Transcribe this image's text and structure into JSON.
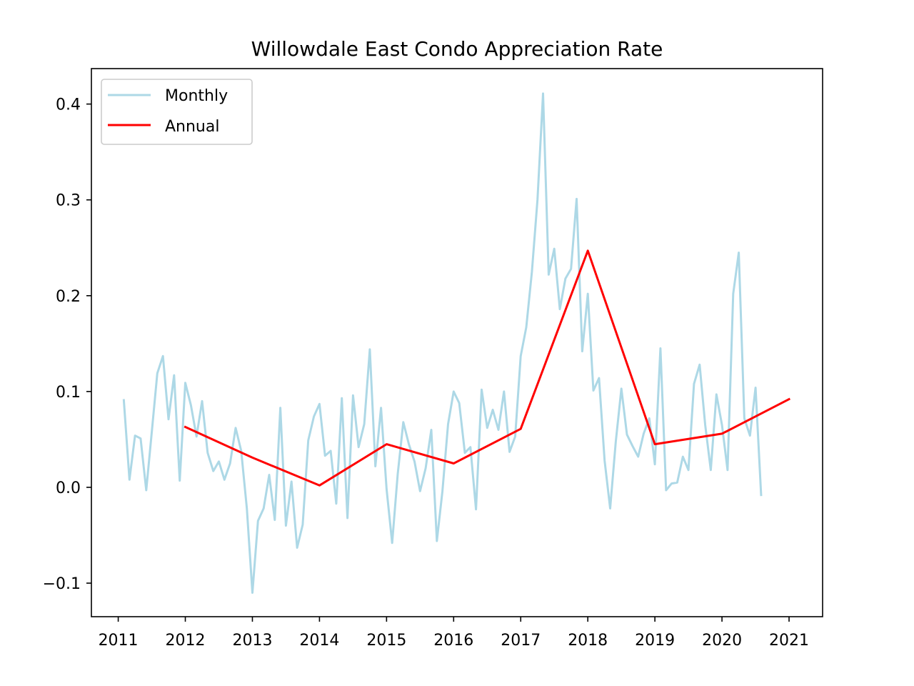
{
  "chart_data": {
    "type": "line",
    "title": "Willowdale East Condo Appreciation Rate",
    "xlabel": "",
    "ylabel": "",
    "xlim": [
      2010.6,
      2021.5
    ],
    "ylim": [
      -0.135,
      0.437
    ],
    "x_ticks": [
      2011,
      2012,
      2013,
      2014,
      2015,
      2016,
      2017,
      2018,
      2019,
      2020,
      2021
    ],
    "x_tick_labels": [
      "2011",
      "2012",
      "2013",
      "2014",
      "2015",
      "2016",
      "2017",
      "2018",
      "2019",
      "2020",
      "2021"
    ],
    "y_ticks": [
      -0.1,
      0.0,
      0.1,
      0.2,
      0.3,
      0.4
    ],
    "y_tick_labels": [
      "−0.1",
      "0.0",
      "0.1",
      "0.2",
      "0.3",
      "0.4"
    ],
    "grid": false,
    "legend": {
      "position": "top-left",
      "entries": [
        "Monthly",
        "Annual"
      ]
    },
    "series": [
      {
        "name": "Monthly",
        "color": "#add8e6",
        "x": [
          2011.083,
          2011.167,
          2011.25,
          2011.333,
          2011.417,
          2011.5,
          2011.583,
          2011.667,
          2011.75,
          2011.833,
          2011.917,
          2012.0,
          2012.083,
          2012.167,
          2012.25,
          2012.333,
          2012.417,
          2012.5,
          2012.583,
          2012.667,
          2012.75,
          2012.833,
          2012.917,
          2013.0,
          2013.083,
          2013.167,
          2013.25,
          2013.333,
          2013.417,
          2013.5,
          2013.583,
          2013.667,
          2013.75,
          2013.833,
          2013.917,
          2014.0,
          2014.083,
          2014.167,
          2014.25,
          2014.333,
          2014.417,
          2014.5,
          2014.583,
          2014.667,
          2014.75,
          2014.833,
          2014.917,
          2015.0,
          2015.083,
          2015.167,
          2015.25,
          2015.333,
          2015.417,
          2015.5,
          2015.583,
          2015.667,
          2015.75,
          2015.833,
          2015.917,
          2016.0,
          2016.083,
          2016.167,
          2016.25,
          2016.333,
          2016.417,
          2016.5,
          2016.583,
          2016.667,
          2016.75,
          2016.833,
          2016.917,
          2017.0,
          2017.083,
          2017.167,
          2017.25,
          2017.333,
          2017.417,
          2017.5,
          2017.583,
          2017.667,
          2017.75,
          2017.833,
          2017.917,
          2018.0,
          2018.083,
          2018.167,
          2018.25,
          2018.333,
          2018.417,
          2018.5,
          2018.583,
          2018.667,
          2018.75,
          2018.833,
          2018.917,
          2019.0,
          2019.083,
          2019.167,
          2019.25,
          2019.333,
          2019.417,
          2019.5,
          2019.583,
          2019.667,
          2019.75,
          2019.833,
          2019.917,
          2020.0,
          2020.083,
          2020.167,
          2020.25,
          2020.333,
          2020.417,
          2020.5,
          2020.583
        ],
        "values": [
          0.091,
          0.008,
          0.054,
          0.051,
          -0.003,
          0.058,
          0.119,
          0.137,
          0.071,
          0.117,
          0.007,
          0.109,
          0.086,
          0.053,
          0.09,
          0.036,
          0.017,
          0.027,
          0.008,
          0.025,
          0.062,
          0.038,
          -0.022,
          -0.11,
          -0.035,
          -0.022,
          0.013,
          -0.034,
          0.083,
          -0.04,
          0.006,
          -0.063,
          -0.039,
          0.049,
          0.074,
          0.087,
          0.033,
          0.038,
          -0.017,
          0.093,
          -0.032,
          0.096,
          0.042,
          0.066,
          0.144,
          0.022,
          0.083,
          -0.002,
          -0.058,
          0.014,
          0.068,
          0.045,
          0.027,
          -0.004,
          0.02,
          0.06,
          -0.056,
          -0.004,
          0.066,
          0.1,
          0.088,
          0.036,
          0.042,
          -0.023,
          0.102,
          0.062,
          0.081,
          0.06,
          0.1,
          0.037,
          0.053,
          0.137,
          0.167,
          0.225,
          0.3,
          0.411,
          0.222,
          0.249,
          0.186,
          0.218,
          0.228,
          0.301,
          0.142,
          0.202,
          0.101,
          0.114,
          0.028,
          -0.022,
          0.048,
          0.103,
          0.055,
          0.043,
          0.032,
          0.056,
          0.072,
          0.024,
          0.145,
          -0.003,
          0.004,
          0.005,
          0.032,
          0.018,
          0.108,
          0.128,
          0.065,
          0.018,
          0.097,
          0.065,
          0.018,
          0.202,
          0.245,
          0.072,
          0.054,
          0.104,
          -0.008
        ]
      },
      {
        "name": "Annual",
        "color": "#ff0000",
        "x": [
          2012,
          2013,
          2014,
          2015,
          2016,
          2017,
          2018,
          2019,
          2020,
          2021
        ],
        "values": [
          0.063,
          0.031,
          0.002,
          0.045,
          0.025,
          0.061,
          0.247,
          0.045,
          0.056,
          0.092
        ]
      }
    ]
  }
}
